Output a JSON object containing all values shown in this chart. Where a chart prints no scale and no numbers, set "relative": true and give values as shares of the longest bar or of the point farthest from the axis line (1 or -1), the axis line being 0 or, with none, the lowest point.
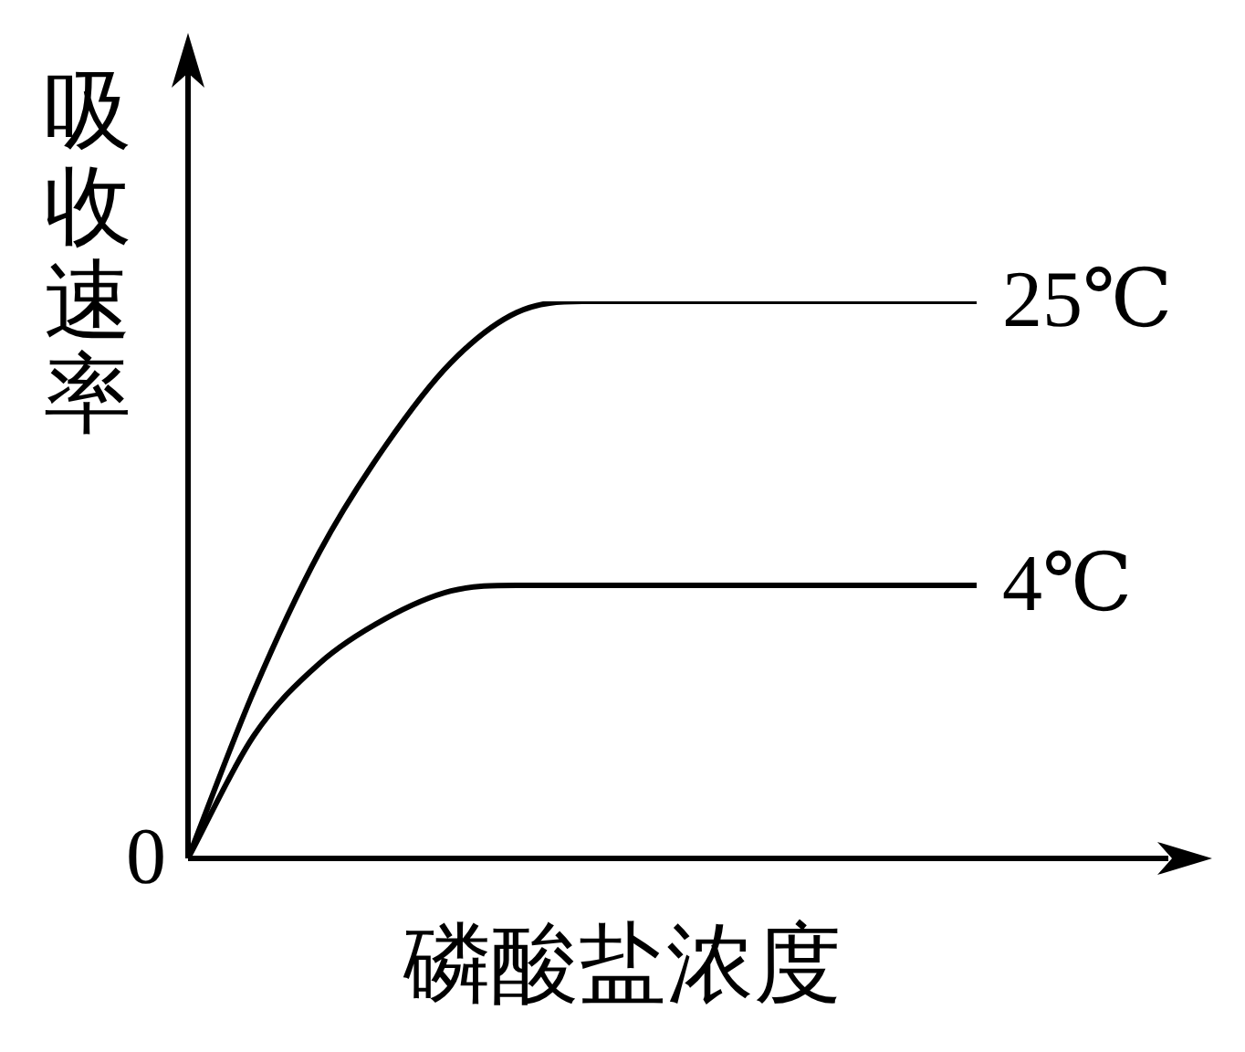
{
  "chart_data": {
    "type": "line",
    "relative": true,
    "xlabel": "磷酸盐浓度",
    "ylabel": "吸收速率",
    "annotations": [
      "0"
    ],
    "marker": "none",
    "categories": [
      null,
      null,
      null,
      null,
      null,
      null,
      null,
      null,
      null,
      null,
      null,
      null,
      null
    ],
    "series": [
      {
        "name": "25℃",
        "color": "#000000",
        "values": [
          0,
          0.3,
          0.55,
          0.74,
          0.89,
          0.98,
          1,
          1,
          1,
          1,
          1,
          1,
          1
        ]
      },
      {
        "name": "4℃",
        "color": "#000000",
        "values": [
          0,
          0.22,
          0.35,
          0.43,
          0.48,
          0.49,
          0.49,
          0.49,
          0.49,
          0.49,
          0.49,
          0.49,
          0.49
        ]
      }
    ]
  }
}
